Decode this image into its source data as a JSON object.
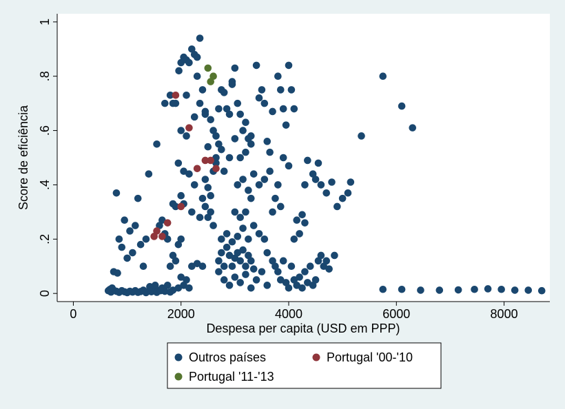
{
  "chart_data": {
    "type": "scatter",
    "title": "",
    "xlabel": "Despesa per capita (USD em PPP)",
    "ylabel": "Score de eficiência",
    "xlim": [
      -300,
      8850
    ],
    "ylim": [
      -0.03,
      1.03
    ],
    "xticks": [
      0,
      2000,
      4000,
      6000,
      8000
    ],
    "xtick_labels": [
      "0",
      "2000",
      "4000",
      "6000",
      "8000"
    ],
    "yticks": [
      0,
      0.2,
      0.4,
      0.6,
      0.8,
      1
    ],
    "ytick_labels": [
      "0",
      ".2",
      ".4",
      ".6",
      ".8",
      "1"
    ],
    "grid": false,
    "legend_position": "bottom",
    "series": [
      {
        "name": "Outros países",
        "color": "#1a476f",
        "points": [
          [
            650,
            0.01
          ],
          [
            700,
            0.005
          ],
          [
            750,
            0.012
          ],
          [
            800,
            0.008
          ],
          [
            850,
            0.004
          ],
          [
            900,
            0.01
          ],
          [
            950,
            0.006
          ],
          [
            1000,
            0.003
          ],
          [
            1050,
            0.008
          ],
          [
            1100,
            0.005
          ],
          [
            1150,
            0.01
          ],
          [
            1200,
            0.004
          ],
          [
            1250,
            0.007
          ],
          [
            1300,
            0.012
          ],
          [
            1350,
            0.003
          ],
          [
            1400,
            0.009
          ],
          [
            1450,
            0.006
          ],
          [
            1500,
            0.015
          ],
          [
            1550,
            0.004
          ],
          [
            1600,
            0.011
          ],
          [
            1650,
            0.02
          ],
          [
            1700,
            0.008
          ],
          [
            1750,
            0.03
          ],
          [
            1800,
            0.005
          ],
          [
            1850,
            0.012
          ],
          [
            680,
            0.015
          ],
          [
            720,
            0.02
          ],
          [
            1420,
            0.025
          ],
          [
            1520,
            0.03
          ],
          [
            1620,
            0.01
          ],
          [
            750,
            0.08
          ],
          [
            820,
            0.075
          ],
          [
            1000,
            0.13
          ],
          [
            1100,
            0.15
          ],
          [
            900,
            0.17
          ],
          [
            850,
            0.2
          ],
          [
            950,
            0.27
          ],
          [
            1050,
            0.23
          ],
          [
            1150,
            0.25
          ],
          [
            800,
            0.37
          ],
          [
            1200,
            0.35
          ],
          [
            1250,
            0.18
          ],
          [
            1350,
            0.2
          ],
          [
            1400,
            0.44
          ],
          [
            1300,
            0.1
          ],
          [
            1550,
            0.55
          ],
          [
            1600,
            0.25
          ],
          [
            1650,
            0.27
          ],
          [
            1700,
            0.22
          ],
          [
            1750,
            0.2
          ],
          [
            1800,
            0.1
          ],
          [
            1850,
            0.14
          ],
          [
            1900,
            0.12
          ],
          [
            1950,
            0.18
          ],
          [
            2000,
            0.2
          ],
          [
            1700,
            0.7
          ],
          [
            1800,
            0.73
          ],
          [
            1850,
            0.7
          ],
          [
            1900,
            0.7
          ],
          [
            1950,
            0.48
          ],
          [
            2000,
            0.6
          ],
          [
            2050,
            0.45
          ],
          [
            2100,
            0.73
          ],
          [
            1960,
            0.82
          ],
          [
            2000,
            0.85
          ],
          [
            2050,
            0.87
          ],
          [
            2100,
            0.86
          ],
          [
            2150,
            0.85
          ],
          [
            2200,
            0.9
          ],
          [
            2250,
            0.88
          ],
          [
            2300,
            0.87
          ],
          [
            2350,
            0.94
          ],
          [
            2300,
            0.8
          ],
          [
            2400,
            0.75
          ],
          [
            2450,
            0.67
          ],
          [
            2350,
            0.7
          ],
          [
            2250,
            0.65
          ],
          [
            2100,
            0.58
          ],
          [
            2150,
            0.44
          ],
          [
            2250,
            0.4
          ],
          [
            2200,
            0.3
          ],
          [
            2050,
            0.33
          ],
          [
            2000,
            0.36
          ],
          [
            1900,
            0.32
          ],
          [
            1850,
            0.33
          ],
          [
            2200,
            0.1
          ],
          [
            2300,
            0.11
          ],
          [
            2400,
            0.1
          ],
          [
            2100,
            0.05
          ],
          [
            2000,
            0.06
          ],
          [
            1950,
            0.02
          ],
          [
            2050,
            0.03
          ],
          [
            2150,
            0.02
          ],
          [
            2450,
            0.42
          ],
          [
            2500,
            0.39
          ],
          [
            2550,
            0.36
          ],
          [
            2600,
            0.45
          ],
          [
            2700,
            0.55
          ],
          [
            2650,
            0.5
          ],
          [
            2500,
            0.54
          ],
          [
            2450,
            0.66
          ],
          [
            2550,
            0.64
          ],
          [
            2600,
            0.6
          ],
          [
            2650,
            0.58
          ],
          [
            2700,
            0.68
          ],
          [
            2750,
            0.75
          ],
          [
            2800,
            0.74
          ],
          [
            2850,
            0.68
          ],
          [
            2900,
            0.66
          ],
          [
            2950,
            0.78
          ],
          [
            3000,
            0.83
          ],
          [
            2950,
            0.77
          ],
          [
            3050,
            0.7
          ],
          [
            3100,
            0.66
          ],
          [
            3150,
            0.6
          ],
          [
            3200,
            0.63
          ],
          [
            3250,
            0.57
          ],
          [
            3300,
            0.58
          ],
          [
            3000,
            0.57
          ],
          [
            2900,
            0.5
          ],
          [
            2800,
            0.45
          ],
          [
            2750,
            0.53
          ],
          [
            2650,
            0.48
          ],
          [
            2550,
            0.3
          ],
          [
            2500,
            0.28
          ],
          [
            2600,
            0.25
          ],
          [
            2450,
            0.32
          ],
          [
            2400,
            0.35
          ],
          [
            2350,
            0.28
          ],
          [
            2700,
            0.12
          ],
          [
            2750,
            0.15
          ],
          [
            2800,
            0.1
          ],
          [
            2850,
            0.17
          ],
          [
            2900,
            0.14
          ],
          [
            2950,
            0.1
          ],
          [
            3000,
            0.13
          ],
          [
            3050,
            0.15
          ],
          [
            3100,
            0.12
          ],
          [
            3150,
            0.16
          ],
          [
            3200,
            0.1
          ],
          [
            3250,
            0.14
          ],
          [
            3300,
            0.12
          ],
          [
            3350,
            0.09
          ],
          [
            2700,
            0.08
          ],
          [
            2800,
            0.05
          ],
          [
            2900,
            0.03
          ],
          [
            3000,
            0.06
          ],
          [
            3100,
            0.04
          ],
          [
            3200,
            0.07
          ],
          [
            3300,
            0.02
          ],
          [
            3400,
            0.05
          ],
          [
            3500,
            0.08
          ],
          [
            3600,
            0.03
          ],
          [
            2750,
            0.2
          ],
          [
            2850,
            0.22
          ],
          [
            2950,
            0.19
          ],
          [
            3050,
            0.21
          ],
          [
            3150,
            0.24
          ],
          [
            3250,
            0.2
          ],
          [
            3350,
            0.25
          ],
          [
            3450,
            0.22
          ],
          [
            3550,
            0.2
          ],
          [
            3000,
            0.3
          ],
          [
            3100,
            0.28
          ],
          [
            3200,
            0.3
          ],
          [
            3300,
            0.35
          ],
          [
            3050,
            0.4
          ],
          [
            3150,
            0.42
          ],
          [
            3250,
            0.38
          ],
          [
            3350,
            0.44
          ],
          [
            3450,
            0.4
          ],
          [
            3550,
            0.42
          ],
          [
            3650,
            0.45
          ],
          [
            3100,
            0.5
          ],
          [
            3200,
            0.52
          ],
          [
            3300,
            0.55
          ],
          [
            3400,
            0.84
          ],
          [
            3450,
            0.72
          ],
          [
            3500,
            0.75
          ],
          [
            3550,
            0.7
          ],
          [
            3600,
            0.56
          ],
          [
            3650,
            0.52
          ],
          [
            3700,
            0.67
          ],
          [
            3800,
            0.8
          ],
          [
            3850,
            0.75
          ],
          [
            3900,
            0.68
          ],
          [
            3950,
            0.62
          ],
          [
            4000,
            0.84
          ],
          [
            4050,
            0.75
          ],
          [
            4100,
            0.68
          ],
          [
            4000,
            0.47
          ],
          [
            3900,
            0.5
          ],
          [
            3800,
            0.4
          ],
          [
            3750,
            0.35
          ],
          [
            3700,
            0.3
          ],
          [
            3850,
            0.32
          ],
          [
            3600,
            0.15
          ],
          [
            3700,
            0.12
          ],
          [
            3750,
            0.1
          ],
          [
            3800,
            0.08
          ],
          [
            3850,
            0.05
          ],
          [
            3900,
            0.12
          ],
          [
            3950,
            0.04
          ],
          [
            4000,
            0.02
          ],
          [
            4050,
            0.1
          ],
          [
            4100,
            0.05
          ],
          [
            4150,
            0.03
          ],
          [
            4200,
            0.06
          ],
          [
            4250,
            0.02
          ],
          [
            4300,
            0.08
          ],
          [
            4350,
            0.04
          ],
          [
            4400,
            0.1
          ],
          [
            4450,
            0.03
          ],
          [
            4500,
            0.05
          ],
          [
            4550,
            0.12
          ],
          [
            4600,
            0.14
          ],
          [
            4650,
            0.1
          ],
          [
            4700,
            0.12
          ],
          [
            4750,
            0.09
          ],
          [
            4850,
            0.14
          ],
          [
            4200,
            0.22
          ],
          [
            4250,
            0.29
          ],
          [
            4300,
            0.26
          ],
          [
            4150,
            0.27
          ],
          [
            4100,
            0.2
          ],
          [
            4300,
            0.4
          ],
          [
            4350,
            0.49
          ],
          [
            4450,
            0.44
          ],
          [
            4500,
            0.42
          ],
          [
            4550,
            0.48
          ],
          [
            4600,
            0.4
          ],
          [
            4700,
            0.37
          ],
          [
            4800,
            0.41
          ],
          [
            4900,
            0.32
          ],
          [
            5000,
            0.35
          ],
          [
            5100,
            0.37
          ],
          [
            5150,
            0.41
          ],
          [
            5350,
            0.58
          ],
          [
            5750,
            0.8
          ],
          [
            6100,
            0.69
          ],
          [
            6300,
            0.61
          ],
          [
            5750,
            0.015
          ],
          [
            6100,
            0.015
          ],
          [
            6450,
            0.012
          ],
          [
            6800,
            0.012
          ],
          [
            7150,
            0.013
          ],
          [
            7450,
            0.015
          ],
          [
            7700,
            0.017
          ],
          [
            7950,
            0.015
          ],
          [
            8200,
            0.012
          ],
          [
            8450,
            0.012
          ],
          [
            8700,
            0.01
          ]
        ]
      },
      {
        "name": "Portugal '00-'10",
        "color": "#90353b",
        "points": [
          [
            1500,
            0.21
          ],
          [
            1550,
            0.23
          ],
          [
            1650,
            0.21
          ],
          [
            1750,
            0.26
          ],
          [
            1900,
            0.73
          ],
          [
            2000,
            0.32
          ],
          [
            2150,
            0.61
          ],
          [
            2300,
            0.46
          ],
          [
            2450,
            0.49
          ],
          [
            2550,
            0.49
          ],
          [
            2650,
            0.46
          ]
        ]
      },
      {
        "name": "Portugal '11-'13",
        "color": "#55752f",
        "points": [
          [
            2500,
            0.83
          ],
          [
            2550,
            0.78
          ],
          [
            2600,
            0.8
          ]
        ]
      }
    ]
  }
}
